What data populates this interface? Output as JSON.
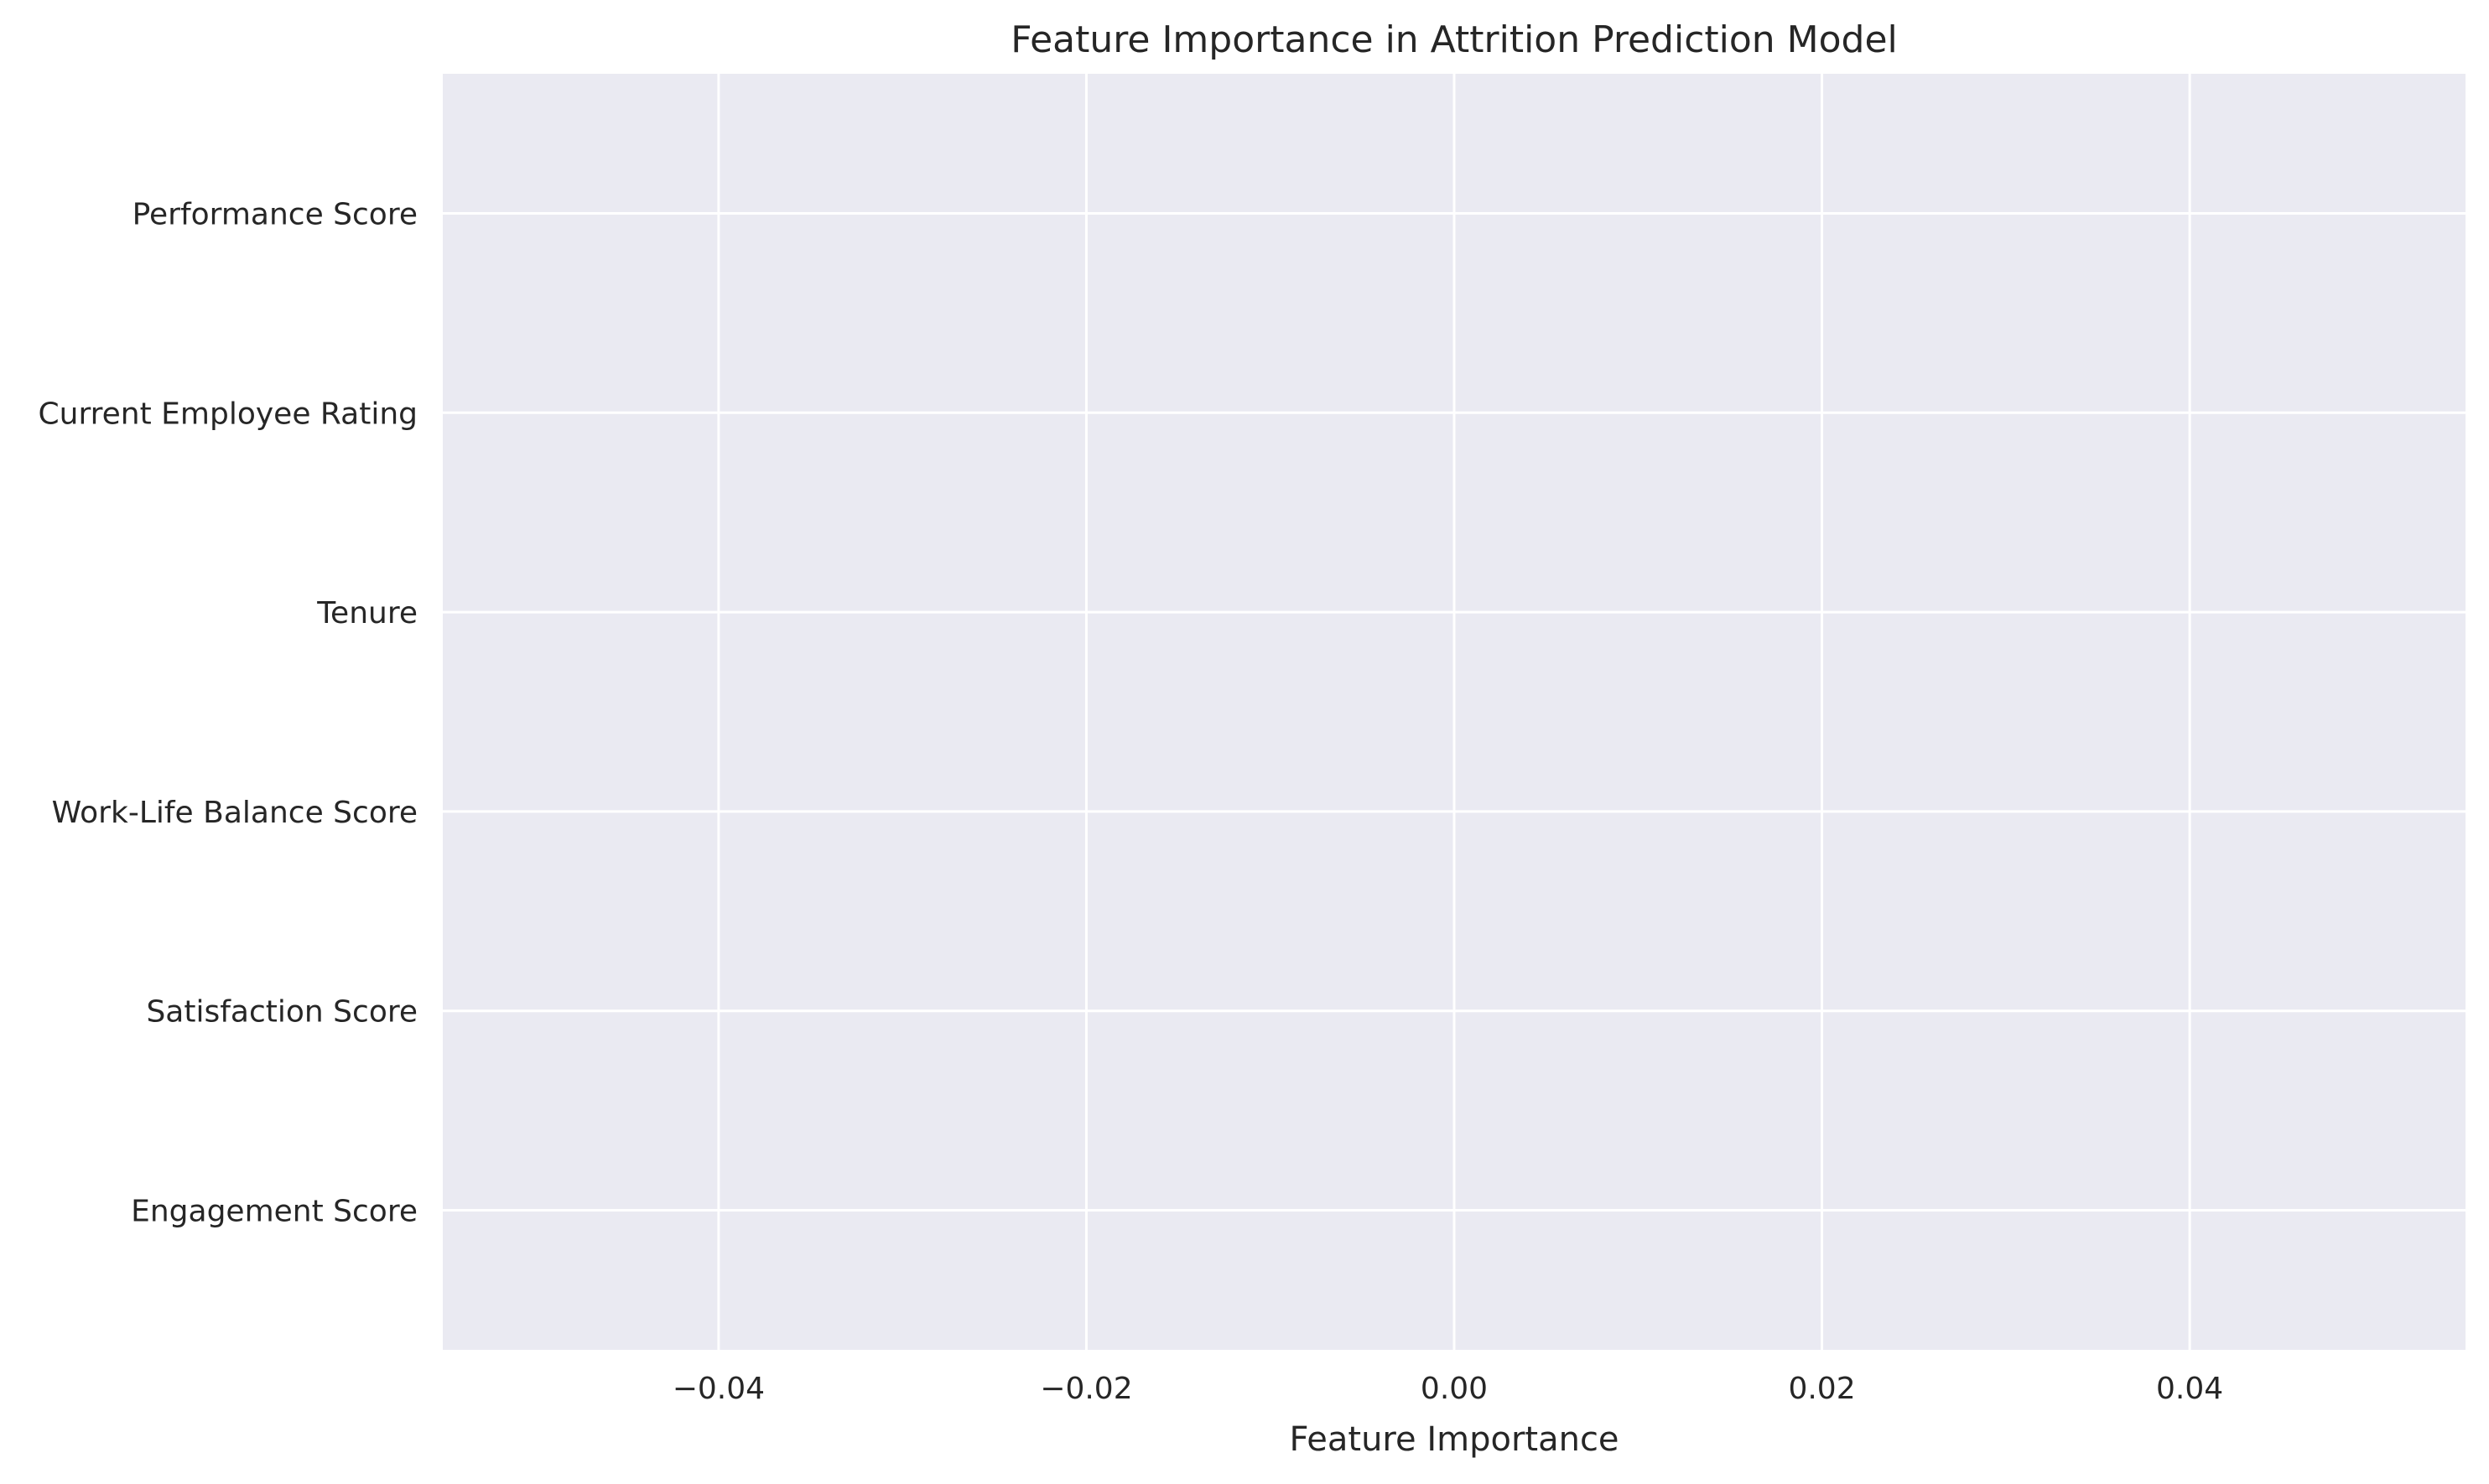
{
  "chart_data": {
    "type": "bar",
    "orientation": "horizontal",
    "title": "Feature Importance in Attrition Prediction Model",
    "xlabel": "Feature Importance",
    "ylabel": "",
    "categories": [
      "Performance Score",
      "Current Employee Rating",
      "Tenure",
      "Work-Life Balance Score",
      "Satisfaction Score",
      "Engagement Score"
    ],
    "values": [
      0,
      0,
      0,
      0,
      0,
      0
    ],
    "xlim": [
      -0.055,
      0.055
    ],
    "xticks": [
      -0.04,
      -0.02,
      0.0,
      0.02,
      0.04
    ],
    "xtick_labels": [
      "−0.04",
      "−0.02",
      "0.00",
      "0.02",
      "0.04"
    ],
    "grid": true,
    "colors": {
      "plot_background": "#EAEAF2",
      "grid": "#FFFFFF",
      "text": "#262626"
    }
  }
}
